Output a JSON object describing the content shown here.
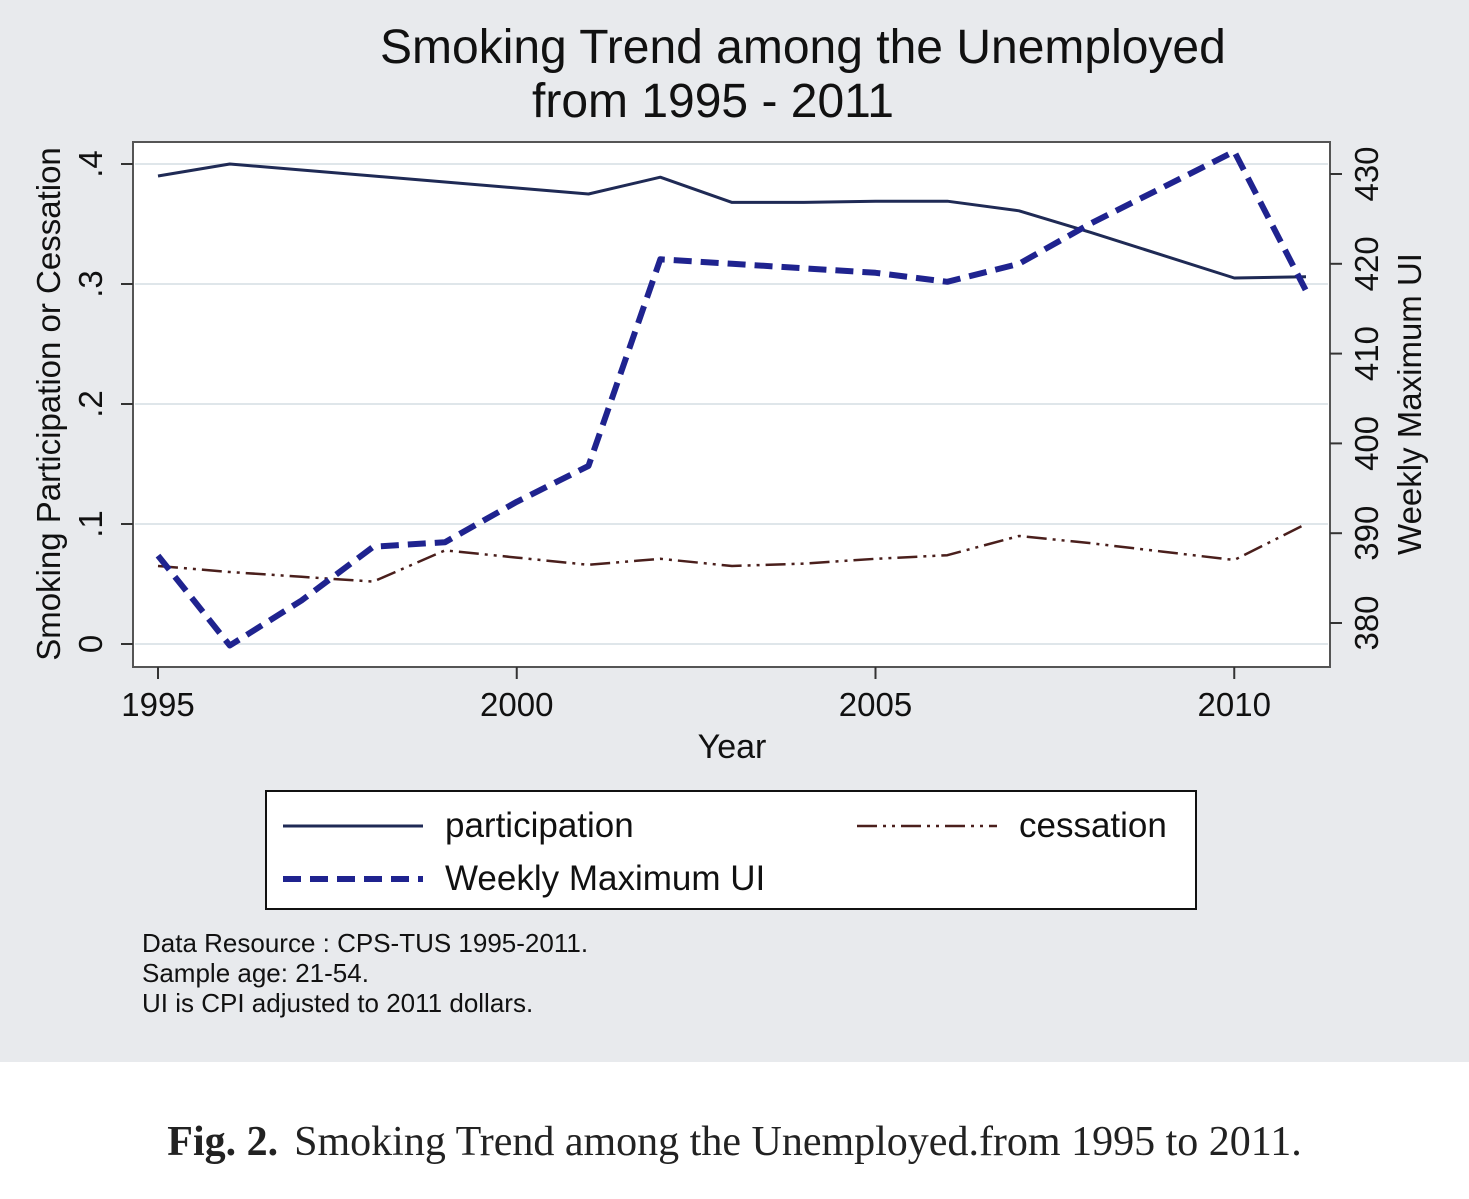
{
  "title_line1": "Smoking Trend among the Unemployed",
  "title_line2": "from 1995 - 2011",
  "notes": [
    "Data Resource : CPS-TUS 1995-2011.",
    "Sample age: 21-54.",
    "UI is CPI adjusted to 2011 dollars."
  ],
  "caption": {
    "label": "Fig. 2.",
    "text": "Smoking Trend among the Unemployed.from 1995 to 2011."
  },
  "legend": {
    "participation": "participation",
    "cessation": "cessation",
    "ui": "Weekly Maximum UI"
  },
  "colors": {
    "panel_background": "#e8eaed",
    "plot_background": "#ffffff",
    "gridline": "#dfe6ea",
    "participation": "#1f2a55",
    "cessation": "#4a1f1c",
    "weekly_maximum_ui": "#1f238f"
  },
  "chart_data": {
    "type": "line",
    "title": "Smoking Trend among the Unemployed from 1995 - 2011",
    "xlabel": "Year",
    "ylabel_left": "Smoking Participation or Cessation",
    "ylabel_right": "Weekly Maximum UI",
    "x": [
      1995,
      1996,
      1997,
      1998,
      1999,
      2000,
      2001,
      2002,
      2003,
      2004,
      2005,
      2006,
      2007,
      2008,
      2009,
      2010,
      2011
    ],
    "x_ticks": [
      1995,
      2000,
      2005,
      2010
    ],
    "x_tick_labels": [
      "1995",
      "2000",
      "2005",
      "2010"
    ],
    "xlim": [
      1995,
      2011
    ],
    "y_left_ticks": [
      0,
      0.1,
      0.2,
      0.3,
      0.4
    ],
    "y_left_tick_labels": [
      "0",
      ".1",
      ".2",
      ".3",
      ".4"
    ],
    "ylim_left": [
      -0.02,
      0.42
    ],
    "y_right_ticks": [
      380,
      390,
      400,
      410,
      420,
      430
    ],
    "y_right_tick_labels": [
      "380",
      "390",
      "400",
      "410",
      "420",
      "430"
    ],
    "grid": true,
    "legend_position": "bottom",
    "series": [
      {
        "name": "participation",
        "axis": "left",
        "style": "solid",
        "values": [
          0.39,
          0.4,
          0.395,
          0.39,
          0.385,
          0.38,
          0.375,
          0.389,
          0.368,
          0.368,
          0.369,
          0.369,
          0.361,
          0.343,
          0.324,
          0.305,
          0.306
        ]
      },
      {
        "name": "cessation",
        "axis": "left",
        "style": "dash-dot",
        "values": [
          0.065,
          0.06,
          0.056,
          0.052,
          0.078,
          0.072,
          0.066,
          0.071,
          0.065,
          0.067,
          0.071,
          0.074,
          0.09,
          0.084,
          0.077,
          0.07,
          0.1
        ]
      },
      {
        "name": "Weekly Maximum UI",
        "axis": "right",
        "style": "dashed",
        "values": [
          387.5,
          377.5,
          382.5,
          388.5,
          389,
          393.5,
          397.5,
          420.5,
          420,
          419.5,
          419,
          418,
          420,
          424.5,
          428.5,
          432.5,
          417
        ]
      }
    ]
  }
}
